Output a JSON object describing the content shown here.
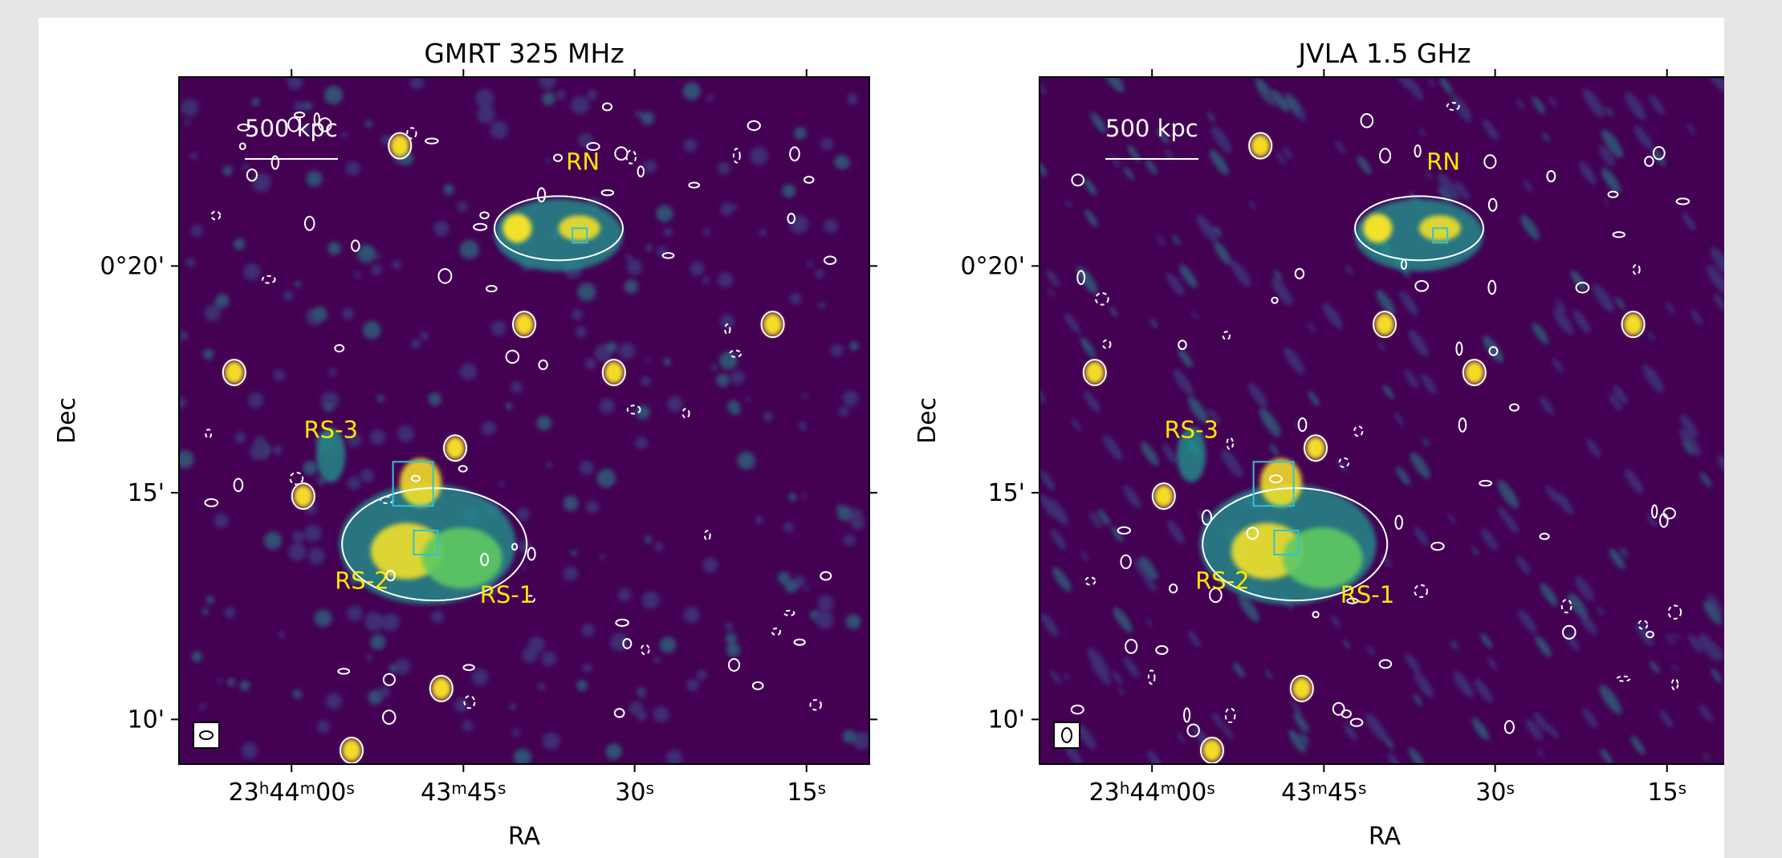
{
  "chart_data": [
    {
      "type": "image",
      "title": "GMRT 325 MHz",
      "xlabel": "RA",
      "ylabel": "Dec",
      "x_ticks": [
        {
          "h": "23",
          "hs": "h",
          "m": "44",
          "ms": "m",
          "s": "00",
          "ss": "s"
        },
        {
          "h": "",
          "hs": "",
          "m": "43",
          "ms": "m",
          "s": "45",
          "ss": "s"
        },
        {
          "h": "",
          "hs": "",
          "m": "",
          "ms": "",
          "s": "30",
          "ss": "s"
        },
        {
          "h": "",
          "hs": "",
          "m": "",
          "ms": "",
          "s": "15",
          "ss": "s"
        }
      ],
      "y_ticks": [
        "0°20'",
        "15'",
        "10'"
      ],
      "scalebar": "500 kpc",
      "regions": [
        {
          "label": "RN",
          "x": 0.585,
          "y": 0.135
        },
        {
          "label": "RS-3",
          "x": 0.22,
          "y": 0.525
        },
        {
          "label": "RS-2",
          "x": 0.265,
          "y": 0.745
        },
        {
          "label": "RS-1",
          "x": 0.475,
          "y": 0.765
        }
      ],
      "colormap": [
        "#440154",
        "#3b528b",
        "#21918c",
        "#5ec962",
        "#fde725"
      ]
    },
    {
      "type": "image",
      "title": "JVLA 1.5 GHz",
      "xlabel": "RA",
      "ylabel": "Dec",
      "x_ticks": [
        {
          "h": "23",
          "hs": "h",
          "m": "44",
          "ms": "m",
          "s": "00",
          "ss": "s"
        },
        {
          "h": "",
          "hs": "",
          "m": "43",
          "ms": "m",
          "s": "45",
          "ss": "s"
        },
        {
          "h": "",
          "hs": "",
          "m": "",
          "ms": "",
          "s": "30",
          "ss": "s"
        },
        {
          "h": "",
          "hs": "",
          "m": "",
          "ms": "",
          "s": "15",
          "ss": "s"
        }
      ],
      "y_ticks": [
        "0°20'",
        "15'",
        "10'"
      ],
      "scalebar": "500 kpc",
      "regions": [
        {
          "label": "RN",
          "x": 0.585,
          "y": 0.135
        },
        {
          "label": "RS-3",
          "x": 0.22,
          "y": 0.525
        },
        {
          "label": "RS-2",
          "x": 0.265,
          "y": 0.745
        },
        {
          "label": "RS-1",
          "x": 0.475,
          "y": 0.765
        }
      ],
      "colormap": [
        "#440154",
        "#3b528b",
        "#21918c",
        "#5ec962",
        "#fde725"
      ]
    }
  ]
}
